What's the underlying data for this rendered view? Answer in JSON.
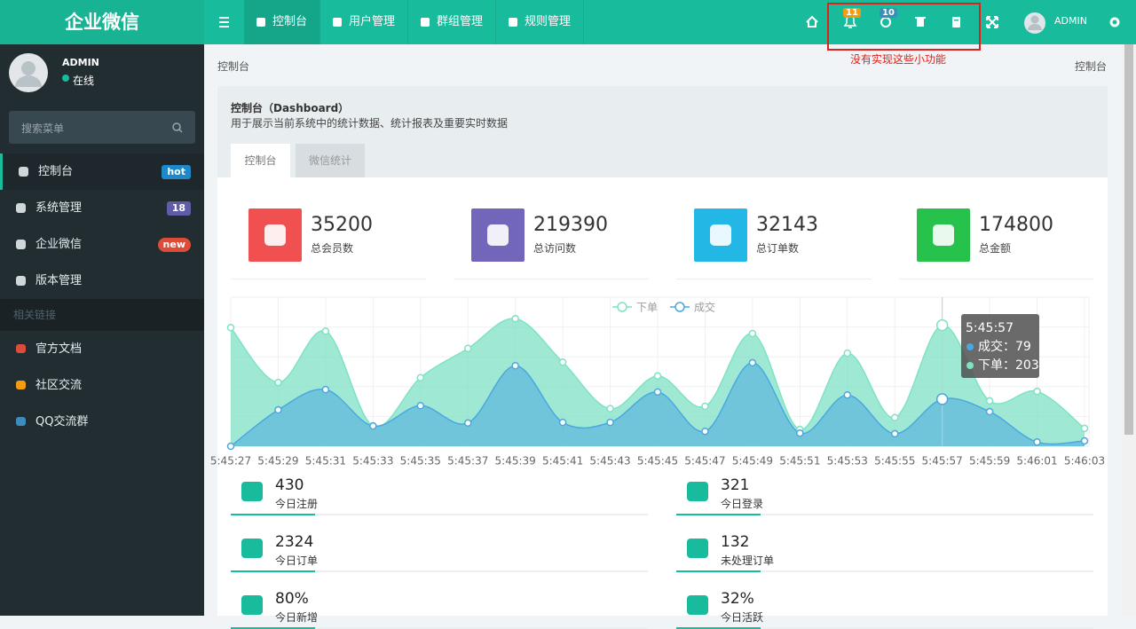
{
  "header": {
    "logo": "企业微信",
    "nav": [
      "控制台",
      "用户管理",
      "群组管理",
      "规则管理"
    ],
    "badges": [
      "11",
      "10"
    ],
    "user": "ADMIN"
  },
  "annotation": "没有实现这些小功能",
  "sidebar": {
    "user": {
      "name": "ADMIN",
      "status": "在线"
    },
    "search_placeholder": "搜索菜单",
    "menu": [
      {
        "label": "控制台",
        "badge": "hot"
      },
      {
        "label": "系统管理",
        "badge": "18"
      },
      {
        "label": "企业微信",
        "badge": "new"
      },
      {
        "label": "版本管理"
      }
    ],
    "section": "相关链接",
    "links": [
      "官方文档",
      "社区交流",
      "QQ交流群"
    ]
  },
  "breadcrumb": "控制台",
  "breadcrumb_right": "控制台",
  "panel": {
    "title": "控制台（Dashboard）",
    "description": "用于展示当前系统中的统计数据、统计报表及重要实时数据",
    "tabs": [
      "控制台",
      "微信统计"
    ]
  },
  "stats": [
    {
      "value": "35200",
      "label": "总会员数"
    },
    {
      "value": "219390",
      "label": "总访问数"
    },
    {
      "value": "32143",
      "label": "总订单数"
    },
    {
      "value": "174800",
      "label": "总金额"
    }
  ],
  "chart_data": {
    "type": "area",
    "categories": [
      "5:45:27",
      "5:45:29",
      "5:45:31",
      "5:45:33",
      "5:45:35",
      "5:45:37",
      "5:45:39",
      "5:45:41",
      "5:45:43",
      "5:45:45",
      "5:45:47",
      "5:45:49",
      "5:45:51",
      "5:45:53",
      "5:45:55",
      "5:45:57",
      "5:45:59",
      "5:46:01",
      "5:46:03"
    ],
    "series": [
      {
        "name": "下单",
        "color": "#7fe2c5",
        "values": [
          199,
          107,
          193,
          34,
          115,
          164,
          214,
          141,
          63,
          118,
          67,
          189,
          28,
          156,
          48,
          203,
          76,
          92,
          30
        ]
      },
      {
        "name": "成交",
        "color": "#4aa8e0",
        "values": [
          0,
          61,
          95,
          34,
          68,
          39,
          135,
          40,
          40,
          91,
          25,
          140,
          22,
          86,
          21,
          79,
          58,
          7,
          9
        ]
      }
    ],
    "ylim": [
      0,
      250
    ],
    "grid": true,
    "legend": "top",
    "tooltip": {
      "title": "5:45:57",
      "lines": [
        "成交：79",
        "下单：203"
      ]
    }
  },
  "summary": [
    {
      "value": "430",
      "label": "今日注册"
    },
    {
      "value": "321",
      "label": "今日登录"
    },
    {
      "value": "2324",
      "label": "今日订单"
    },
    {
      "value": "132",
      "label": "未处理订单"
    },
    {
      "value": "80%",
      "label": "今日新增"
    },
    {
      "value": "32%",
      "label": "今日活跃"
    }
  ]
}
